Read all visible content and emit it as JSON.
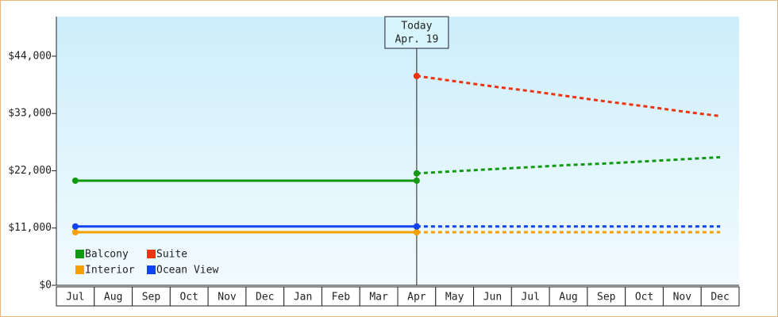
{
  "chart_data": {
    "type": "line",
    "categories": [
      "Jul",
      "Aug",
      "Sep",
      "Oct",
      "Nov",
      "Dec",
      "Jan",
      "Feb",
      "Mar",
      "Apr",
      "May",
      "Jun",
      "Jul",
      "Aug",
      "Sep",
      "Oct",
      "Nov",
      "Dec"
    ],
    "series": [
      {
        "name": "Balcony",
        "color": "#119911",
        "values": [
          20100,
          20100,
          20100,
          20100,
          20100,
          20100,
          20100,
          20100,
          20100,
          20100,
          null,
          null,
          null,
          null,
          null,
          null,
          null,
          null
        ],
        "forecast": [
          null,
          null,
          null,
          null,
          null,
          null,
          null,
          null,
          null,
          21500,
          21900,
          22300,
          22700,
          23100,
          23400,
          23800,
          24200,
          24600
        ]
      },
      {
        "name": "Suite",
        "color": "#ee3311",
        "values": [
          null,
          null,
          null,
          null,
          null,
          null,
          null,
          null,
          null,
          40200,
          null,
          null,
          null,
          null,
          null,
          null,
          null,
          null
        ],
        "forecast": [
          null,
          null,
          null,
          null,
          null,
          null,
          null,
          null,
          null,
          40200,
          39200,
          38200,
          37300,
          36300,
          35300,
          34400,
          33400,
          32500
        ]
      },
      {
        "name": "Interior",
        "color": "#f5a000",
        "values": [
          10200,
          10200,
          10200,
          10200,
          10200,
          10200,
          10200,
          10200,
          10200,
          10200,
          null,
          null,
          null,
          null,
          null,
          null,
          null,
          null
        ],
        "forecast": [
          null,
          null,
          null,
          null,
          null,
          null,
          null,
          null,
          null,
          10200,
          10200,
          10200,
          10200,
          10200,
          10200,
          10200,
          10200,
          10200
        ]
      },
      {
        "name": "Ocean View",
        "color": "#1144ee",
        "values": [
          11300,
          11300,
          11300,
          11300,
          11300,
          11300,
          11300,
          11300,
          11300,
          11300,
          null,
          null,
          null,
          null,
          null,
          null,
          null,
          null
        ],
        "forecast": [
          null,
          null,
          null,
          null,
          null,
          null,
          null,
          null,
          null,
          11300,
          11300,
          11300,
          11300,
          11300,
          11300,
          11300,
          11300,
          11300
        ]
      }
    ],
    "today": {
      "title": "Today",
      "date": "Apr. 19",
      "category": 9
    },
    "ylim": [
      0,
      51600
    ],
    "yticks": [
      {
        "value": 0,
        "label": "$0"
      },
      {
        "value": 11000,
        "label": "$11,000"
      },
      {
        "value": 22000,
        "label": "$22,000"
      },
      {
        "value": 33000,
        "label": "$33,000"
      },
      {
        "value": 44000,
        "label": "$44,000"
      }
    ],
    "legend": "lower left"
  }
}
